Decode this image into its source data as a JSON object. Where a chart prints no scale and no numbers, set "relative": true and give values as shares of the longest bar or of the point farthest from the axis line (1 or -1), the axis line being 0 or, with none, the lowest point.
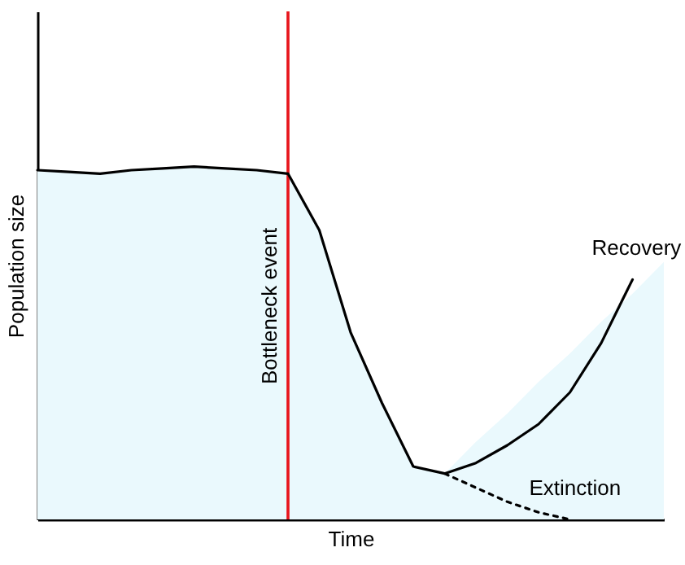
{
  "chart_data": {
    "type": "line",
    "relative": true,
    "xlabel": "Time",
    "ylabel": "Population size",
    "categories": [
      null,
      null,
      null,
      null,
      null,
      null,
      null,
      null,
      null,
      null,
      null,
      null,
      null,
      null,
      null,
      null,
      null,
      null,
      null,
      null,
      null
    ],
    "series": [
      {
        "type": "area",
        "color": "#eaf9fd",
        "values": [
          0.99,
          0.985,
          0.98,
          0.99,
          0.995,
          1,
          0.995,
          0.99,
          0.98,
          0.82,
          0.53,
          0.33,
          0.15,
          0.13,
          0.22,
          0.3,
          0.39,
          0.47,
          0.56,
          0.64,
          0.73
        ]
      },
      {
        "name": "Recovery",
        "color": "#000000",
        "line_style": "solid",
        "values": [
          0.99,
          0.985,
          0.98,
          0.99,
          0.995,
          1,
          0.995,
          0.99,
          0.98,
          0.82,
          0.53,
          0.33,
          0.15,
          0.13,
          0.16,
          0.21,
          0.27,
          0.36,
          0.5,
          0.68,
          null
        ]
      },
      {
        "name": "Extinction",
        "color": "#000000",
        "line_style": "dotted",
        "values": [
          null,
          null,
          null,
          null,
          null,
          null,
          null,
          null,
          null,
          null,
          null,
          null,
          null,
          0.13,
          0.09,
          0.05,
          0.02,
          0,
          null,
          null,
          null
        ]
      }
    ],
    "annotations": [
      "Bottleneck event"
    ]
  }
}
